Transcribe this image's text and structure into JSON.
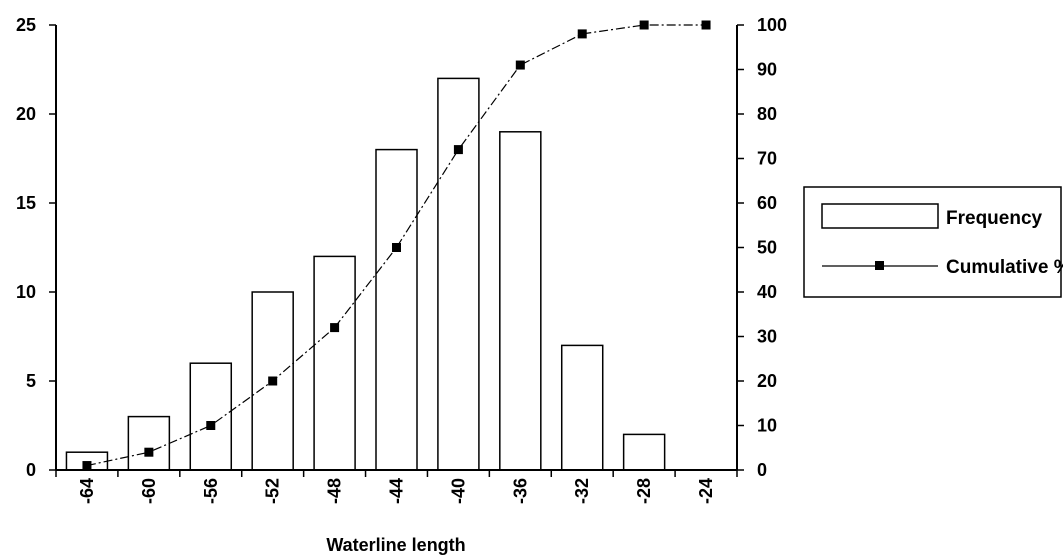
{
  "chart_data": {
    "type": "bar",
    "categories": [
      "-64",
      "-60",
      "-56",
      "-52",
      "-48",
      "-44",
      "-40",
      "-36",
      "-32",
      "-28",
      "-24"
    ],
    "series": [
      {
        "name": "Frequency",
        "type": "bar",
        "axis": "left",
        "values": [
          1,
          3,
          6,
          10,
          12,
          18,
          22,
          19,
          7,
          2,
          0
        ]
      },
      {
        "name": "Cumulative %",
        "type": "line",
        "axis": "right",
        "values": [
          1,
          4,
          10,
          20,
          32,
          50,
          72,
          91,
          98,
          100,
          100
        ]
      }
    ],
    "xlabel": "Waterline length",
    "ylim_left": [
      0,
      25
    ],
    "yticks_left": [
      "0",
      "5",
      "10",
      "15",
      "20",
      "25"
    ],
    "ylim_right": [
      0,
      100
    ],
    "yticks_right": [
      "0",
      "10",
      "20",
      "30",
      "40",
      "50",
      "60",
      "70",
      "80",
      "90",
      "100"
    ],
    "legend_position": "right",
    "grid": false
  }
}
